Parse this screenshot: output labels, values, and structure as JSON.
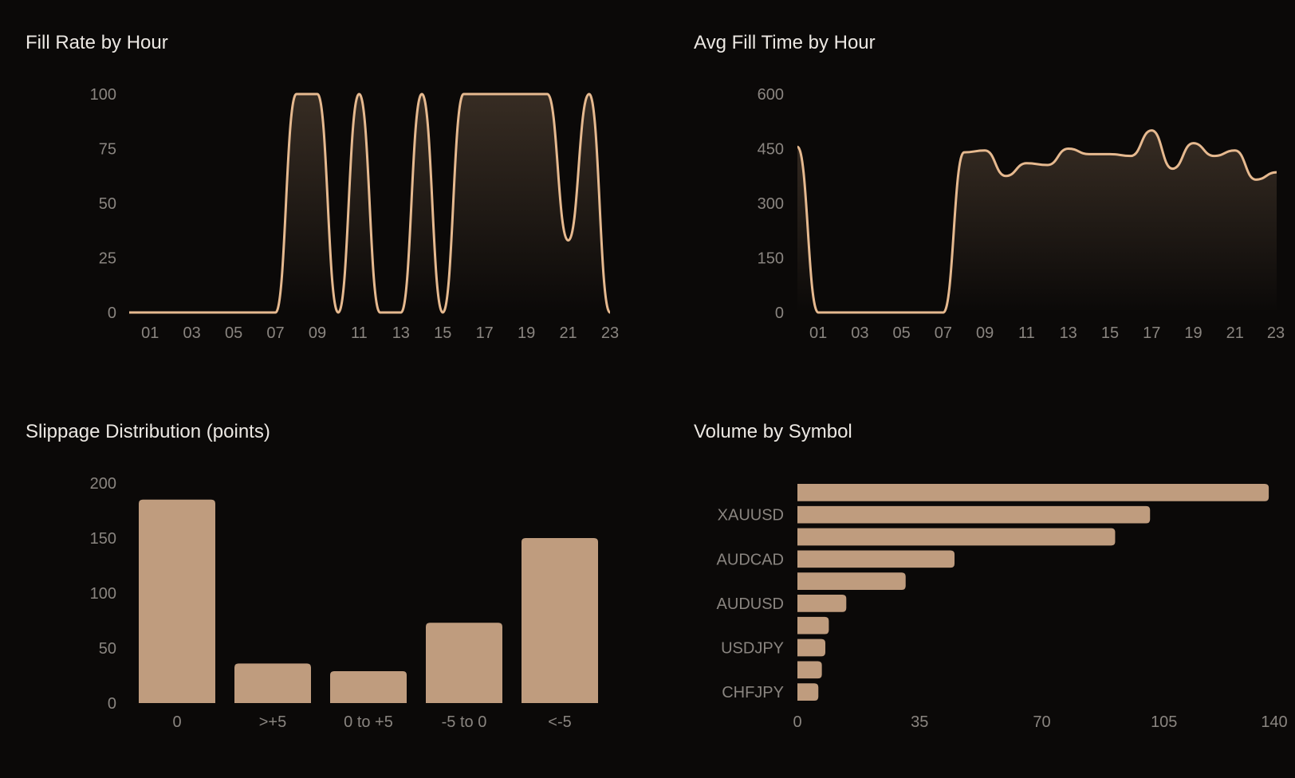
{
  "theme": {
    "background": "#0b0908",
    "accent": "#e6b98f",
    "bar": "#bf9c7e",
    "text": "#ece8e3",
    "tick": "#8a8580"
  },
  "chart_data": [
    {
      "type": "area",
      "title": "Fill Rate by Hour",
      "x": [
        "00",
        "01",
        "02",
        "03",
        "04",
        "05",
        "06",
        "07",
        "08",
        "09",
        "10",
        "11",
        "12",
        "13",
        "14",
        "15",
        "16",
        "17",
        "18",
        "19",
        "20",
        "21",
        "22",
        "23"
      ],
      "xticks": [
        "01",
        "03",
        "05",
        "07",
        "09",
        "11",
        "13",
        "15",
        "17",
        "19",
        "21",
        "23"
      ],
      "values": [
        0,
        0,
        0,
        0,
        0,
        0,
        0,
        0,
        100,
        100,
        0,
        100,
        0,
        0,
        100,
        0,
        100,
        100,
        100,
        100,
        100,
        33,
        100,
        0
      ],
      "ylim": [
        0,
        100
      ],
      "yticks": [
        0,
        25,
        50,
        75,
        100
      ],
      "grid": false,
      "color": "#e6b98f"
    },
    {
      "type": "area",
      "title": "Avg Fill Time by Hour",
      "x": [
        "00",
        "01",
        "02",
        "03",
        "04",
        "05",
        "06",
        "07",
        "08",
        "09",
        "10",
        "11",
        "12",
        "13",
        "14",
        "15",
        "16",
        "17",
        "18",
        "19",
        "20",
        "21",
        "22",
        "23"
      ],
      "xticks": [
        "01",
        "03",
        "05",
        "07",
        "09",
        "11",
        "13",
        "15",
        "17",
        "19",
        "21",
        "23"
      ],
      "values": [
        455,
        0,
        0,
        0,
        0,
        0,
        0,
        0,
        440,
        445,
        375,
        410,
        405,
        450,
        435,
        435,
        430,
        500,
        395,
        465,
        430,
        445,
        365,
        385
      ],
      "ylim": [
        0,
        600
      ],
      "yticks": [
        0,
        150,
        300,
        450,
        600
      ],
      "grid": false,
      "color": "#e6b98f"
    },
    {
      "type": "bar",
      "title": "Slippage Distribution (points)",
      "categories": [
        "0",
        ">+5",
        "0 to +5",
        "-5 to 0",
        "<-5"
      ],
      "values": [
        185,
        36,
        29,
        73,
        150
      ],
      "ylim": [
        0,
        200
      ],
      "yticks": [
        0,
        50,
        100,
        150,
        200
      ],
      "grid": false,
      "color": "#bf9c7e"
    },
    {
      "type": "bar",
      "orientation": "horizontal",
      "title": "Volume by Symbol",
      "bar_count": 10,
      "labels": [
        "",
        "XAUUSD",
        "",
        "AUDCAD",
        "",
        "AUDUSD",
        "",
        "USDJPY",
        "",
        "CHFJPY"
      ],
      "values": [
        135,
        101,
        91,
        45,
        31,
        14,
        9,
        8,
        7,
        6
      ],
      "xlim": [
        0,
        140
      ],
      "xticks": [
        0,
        35,
        70,
        105,
        140
      ],
      "grid": false,
      "color": "#bf9c7e"
    }
  ]
}
